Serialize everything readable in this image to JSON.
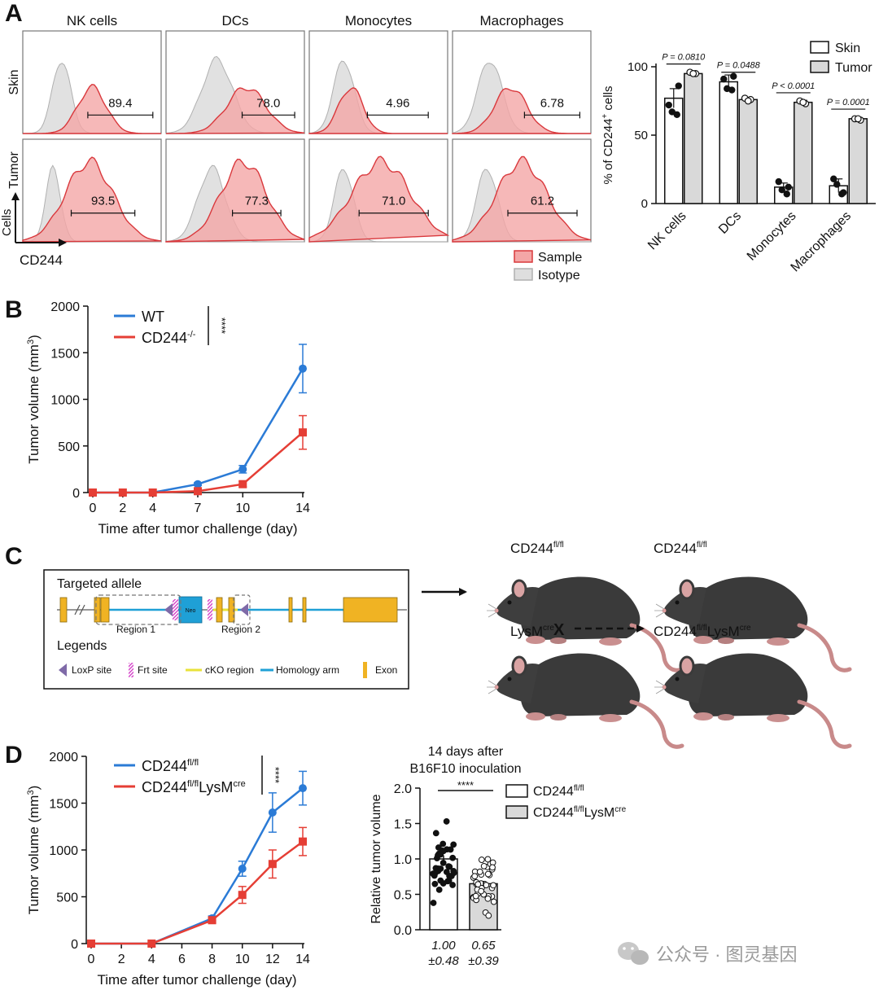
{
  "colors": {
    "sample_fill": "#f4a6a6",
    "sample_stroke": "#d9383c",
    "isotype_fill": "#dedede",
    "isotype_stroke": "#b0b0b0",
    "wt_blue": "#2b7bd6",
    "ko_red": "#e53e35",
    "tumor_bar": "#d9d9d9"
  },
  "panel_a": {
    "label": "A",
    "columns": [
      "NK cells",
      "DCs",
      "Monocytes",
      "Macrophages"
    ],
    "rows": [
      "Skin",
      "Tumor"
    ],
    "values_skin": [
      "89.4",
      "78.0",
      "4.96",
      "6.78"
    ],
    "values_tumor": [
      "93.5",
      "77.3",
      "71.0",
      "61.2"
    ],
    "axis_y": "Cells",
    "axis_x": "CD244",
    "legend": [
      "Sample",
      "Isotype"
    ]
  },
  "panel_a_bar": {
    "ylabel_prefix": "% of CD244",
    "ylabel_sup": "+",
    "ylabel_suffix": " cells",
    "legend": [
      "Skin",
      "Tumor"
    ],
    "pvalues": [
      "P = 0.0810",
      "P = 0.0488",
      "P < 0.0001",
      "P = 0.0001"
    ]
  },
  "panel_b": {
    "label": "B",
    "legend_wt": "WT",
    "legend_ko": "CD244",
    "legend_ko_sup": "-/-",
    "stars": "****",
    "ylabel_main": "Tumor volume (mm",
    "ylabel_sup": "3",
    "ylabel_close": ")",
    "xlabel": "Time after tumor challenge (day)"
  },
  "panel_c": {
    "label": "C",
    "title": "Targeted allele",
    "region1": "Region 1",
    "region2": "Region 2",
    "neo": "Neo",
    "legends_title": "Legends",
    "legend_items": [
      "LoxP site",
      "Frt site",
      "cKO region",
      "Homology arm",
      "Exon"
    ],
    "mouse_cd244": "CD244",
    "mouse_flfl_sup": "fl/fl",
    "mouse_lysm": "LysM",
    "mouse_cre_sup": "cre",
    "cross": "X"
  },
  "panel_d": {
    "label": "D",
    "legend_1": "CD244",
    "legend_1_sup": "fl/fl",
    "legend_2": "CD244",
    "legend_2_sup1": "fl/fl",
    "legend_2_mid": "LysM",
    "legend_2_sup2": "cre",
    "stars": "****",
    "ylabel_main": "Tumor volume (mm",
    "ylabel_sup": "3",
    "ylabel_close": ")",
    "xlabel": "Time after tumor challenge (day)",
    "bar_title_1": "14 days after",
    "bar_title_2": "B16F10 inoculation",
    "bar_ylabel": "Relative tumor volume",
    "bar_stars": "****",
    "mean_1": "1.00",
    "sd_1": "±0.48",
    "mean_2": "0.65",
    "sd_2": "±0.39"
  },
  "watermark": "公众号 · 图灵基因",
  "chart_data": [
    {
      "type": "bar",
      "title": "",
      "ylabel": "% of CD244+ cells",
      "categories": [
        "NK cells",
        "DCs",
        "Monocytes",
        "Macrophages"
      ],
      "series": [
        {
          "name": "Skin",
          "values": [
            77,
            89,
            12,
            13
          ],
          "sem": [
            7,
            5,
            3,
            5
          ]
        },
        {
          "name": "Tumor",
          "values": [
            95,
            76,
            74,
            62
          ],
          "sem": [
            1.5,
            1.5,
            1.5,
            1
          ]
        }
      ],
      "points_skin": [
        [
          72,
          86,
          67,
          65
        ],
        [
          91,
          93,
          84,
          83
        ],
        [
          16,
          12,
          10,
          7
        ],
        [
          18,
          8,
          14,
          7
        ]
      ],
      "points_tumor": [
        [
          96,
          95,
          95
        ],
        [
          77,
          76,
          75
        ],
        [
          75,
          73,
          74
        ],
        [
          62,
          61,
          62
        ]
      ],
      "pvalues": [
        "P = 0.0810",
        "P = 0.0488",
        "P < 0.0001",
        "P = 0.0001"
      ],
      "ylim": [
        0,
        100
      ],
      "yticks": [
        0,
        50,
        100
      ]
    },
    {
      "type": "line",
      "title": "",
      "xlabel": "Time after tumor challenge (day)",
      "ylabel": "Tumor volume (mm3)",
      "x": [
        0,
        2,
        4,
        7,
        10,
        14
      ],
      "series": [
        {
          "name": "WT",
          "values": [
            0,
            0,
            0,
            90,
            250,
            1330
          ],
          "err": [
            0,
            0,
            0,
            15,
            40,
            260
          ]
        },
        {
          "name": "CD244-/-",
          "values": [
            0,
            0,
            0,
            15,
            90,
            645
          ],
          "err": [
            0,
            0,
            0,
            10,
            30,
            180
          ]
        }
      ],
      "xlim": [
        0,
        14
      ],
      "ylim": [
        0,
        2000
      ],
      "xticks": [
        0,
        2,
        4,
        7,
        10,
        14
      ],
      "yticks": [
        0,
        500,
        1000,
        1500,
        2000
      ],
      "annotation": "****"
    },
    {
      "type": "line",
      "title": "",
      "xlabel": "Time after tumor challenge (day)",
      "ylabel": "Tumor volume (mm3)",
      "x": [
        0,
        4,
        8,
        10,
        12,
        14
      ],
      "series": [
        {
          "name": "CD244fl/fl",
          "values": [
            0,
            0,
            270,
            800,
            1400,
            1660
          ],
          "err": [
            0,
            0,
            25,
            80,
            210,
            180
          ]
        },
        {
          "name": "CD244fl/flLysMcre",
          "values": [
            0,
            0,
            250,
            520,
            850,
            1090
          ],
          "err": [
            0,
            0,
            25,
            90,
            150,
            150
          ]
        }
      ],
      "xlim": [
        0,
        14
      ],
      "ylim": [
        0,
        2000
      ],
      "xticks": [
        0,
        2,
        4,
        6,
        8,
        10,
        12,
        14
      ],
      "yticks": [
        0,
        500,
        1000,
        1500,
        2000
      ],
      "annotation": "****"
    },
    {
      "type": "bar",
      "title": "14 days after B16F10 inoculation",
      "ylabel": "Relative tumor volume",
      "categories": [
        "CD244fl/fl",
        "CD244fl/flLysMcre"
      ],
      "values": [
        1.0,
        0.65
      ],
      "sd": [
        0.48,
        0.39
      ],
      "sem": [
        0.05,
        0.04
      ],
      "ylim": [
        0,
        2.0
      ],
      "yticks": [
        0.0,
        0.5,
        1.0,
        1.5,
        2.0
      ],
      "annotation": "****"
    }
  ]
}
